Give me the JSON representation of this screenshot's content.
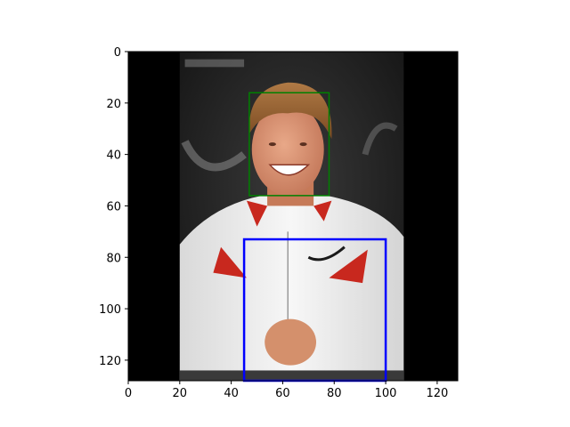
{
  "chart_data": {
    "type": "image",
    "title": "",
    "xlabel": "",
    "ylabel": "",
    "xlim": [
      0,
      128
    ],
    "ylim": [
      128,
      0
    ],
    "x_ticks": [
      0,
      20,
      40,
      60,
      80,
      100,
      120
    ],
    "y_ticks": [
      0,
      20,
      40,
      60,
      80,
      100,
      120
    ],
    "x_tick_labels": [
      "0",
      "20",
      "40",
      "60",
      "80",
      "100",
      "120"
    ],
    "y_tick_labels": [
      "0",
      "20",
      "40",
      "60",
      "80",
      "100",
      "120"
    ],
    "grid": false,
    "image": {
      "extent": [
        0,
        128,
        128,
        0
      ],
      "content_x_range": [
        20,
        107
      ],
      "padding_color": "#000000"
    },
    "boxes": [
      {
        "label": "face",
        "color": "#008000",
        "x0": 47,
        "y0": 16,
        "x1": 78,
        "y1": 56
      },
      {
        "label": "torso",
        "color": "#0000ff",
        "x0": 45,
        "y0": 73,
        "x1": 100,
        "y1": 128
      }
    ]
  }
}
